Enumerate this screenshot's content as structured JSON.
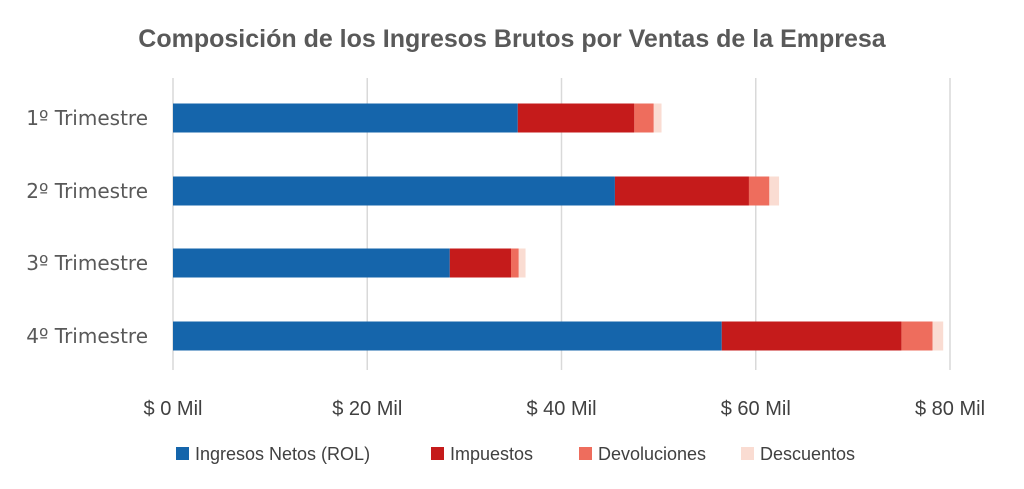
{
  "chart_data": {
    "type": "bar",
    "orientation": "horizontal",
    "stacked": true,
    "title": "Composición de los Ingresos Brutos por Ventas de la Empresa",
    "categories": [
      "1º Trimestre",
      "2º Trimestre",
      "3º Trimestre",
      "4º Trimestre"
    ],
    "series": [
      {
        "name": "Ingresos Netos (ROL)",
        "color": "#1565ab",
        "values": [
          35.5,
          45.5,
          28.5,
          56.5
        ]
      },
      {
        "name": "Impuestos",
        "color": "#c51b1b",
        "values": [
          12.0,
          13.8,
          6.3,
          18.5
        ]
      },
      {
        "name": "Devoluciones",
        "color": "#ee6d5d",
        "values": [
          2.0,
          2.1,
          0.8,
          3.2
        ]
      },
      {
        "name": "Descuentos",
        "color": "#fadcd2",
        "values": [
          0.8,
          1.0,
          0.7,
          1.1
        ]
      }
    ],
    "xlim": [
      0,
      80
    ],
    "xticks": [
      0,
      20,
      40,
      60,
      80
    ],
    "xtick_labels": [
      "$ 0 Mil",
      "$ 20 Mil",
      "$ 40 Mil",
      "$ 60 Mil",
      "$ 80 Mil"
    ],
    "grid": true,
    "legend_position": "bottom"
  }
}
